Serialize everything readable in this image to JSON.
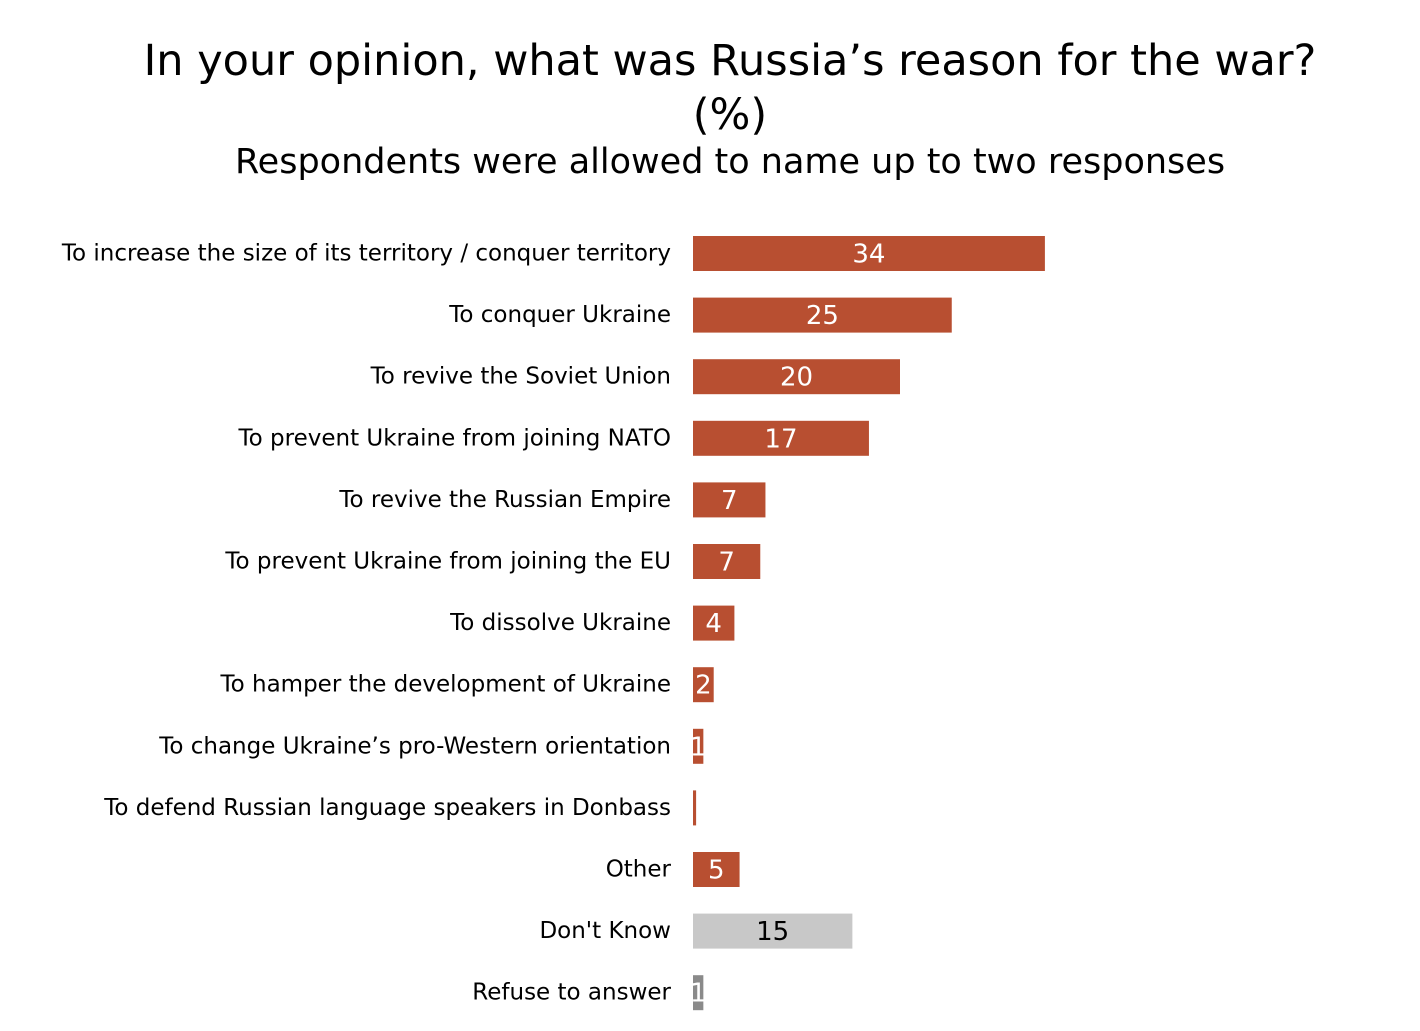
{
  "chart_data": {
    "type": "bar",
    "orientation": "horizontal",
    "title": "In your opinion, what was Russia’s reason for the war? (%)",
    "subtitle": "Respondents were allowed to name up to two responses",
    "categories": [
      "To increase the size of its territory / conquer territory",
      "To conquer Ukraine",
      "To revive the Soviet Union",
      "To prevent Ukraine from joining NATO",
      "To revive the Russian Empire",
      "To prevent Ukraine from joining the EU",
      "To dissolve Ukraine",
      "To hamper the development of Ukraine",
      "To change Ukraine’s pro-Western orientation",
      "To defend Russian language speakers in Donbass",
      "Other",
      "Don't Know",
      "Refuse to answer"
    ],
    "values": [
      34,
      25,
      20,
      17,
      7,
      6.5,
      4,
      2,
      1,
      0.3,
      4.5,
      15.4,
      1
    ],
    "data_labels": [
      "34",
      "25",
      "20",
      "17",
      "7",
      "7",
      "4",
      "2",
      "1",
      "",
      "5",
      "15",
      "1"
    ],
    "bar_colors": [
      "#b84f31",
      "#b84f31",
      "#b84f31",
      "#b84f31",
      "#b84f31",
      "#b84f31",
      "#b84f31",
      "#b84f31",
      "#b84f31",
      "#b84f31",
      "#b84f31",
      "#c8c8c8",
      "#8a8a8a"
    ],
    "label_colors": [
      "#ffffff",
      "#ffffff",
      "#ffffff",
      "#ffffff",
      "#ffffff",
      "#ffffff",
      "#ffffff",
      "#ffffff",
      "#ffffff",
      "#ffffff",
      "#ffffff",
      "#000000",
      "#ffffff"
    ],
    "xlim": [
      0,
      100
    ],
    "grid": false,
    "legend": "none"
  }
}
